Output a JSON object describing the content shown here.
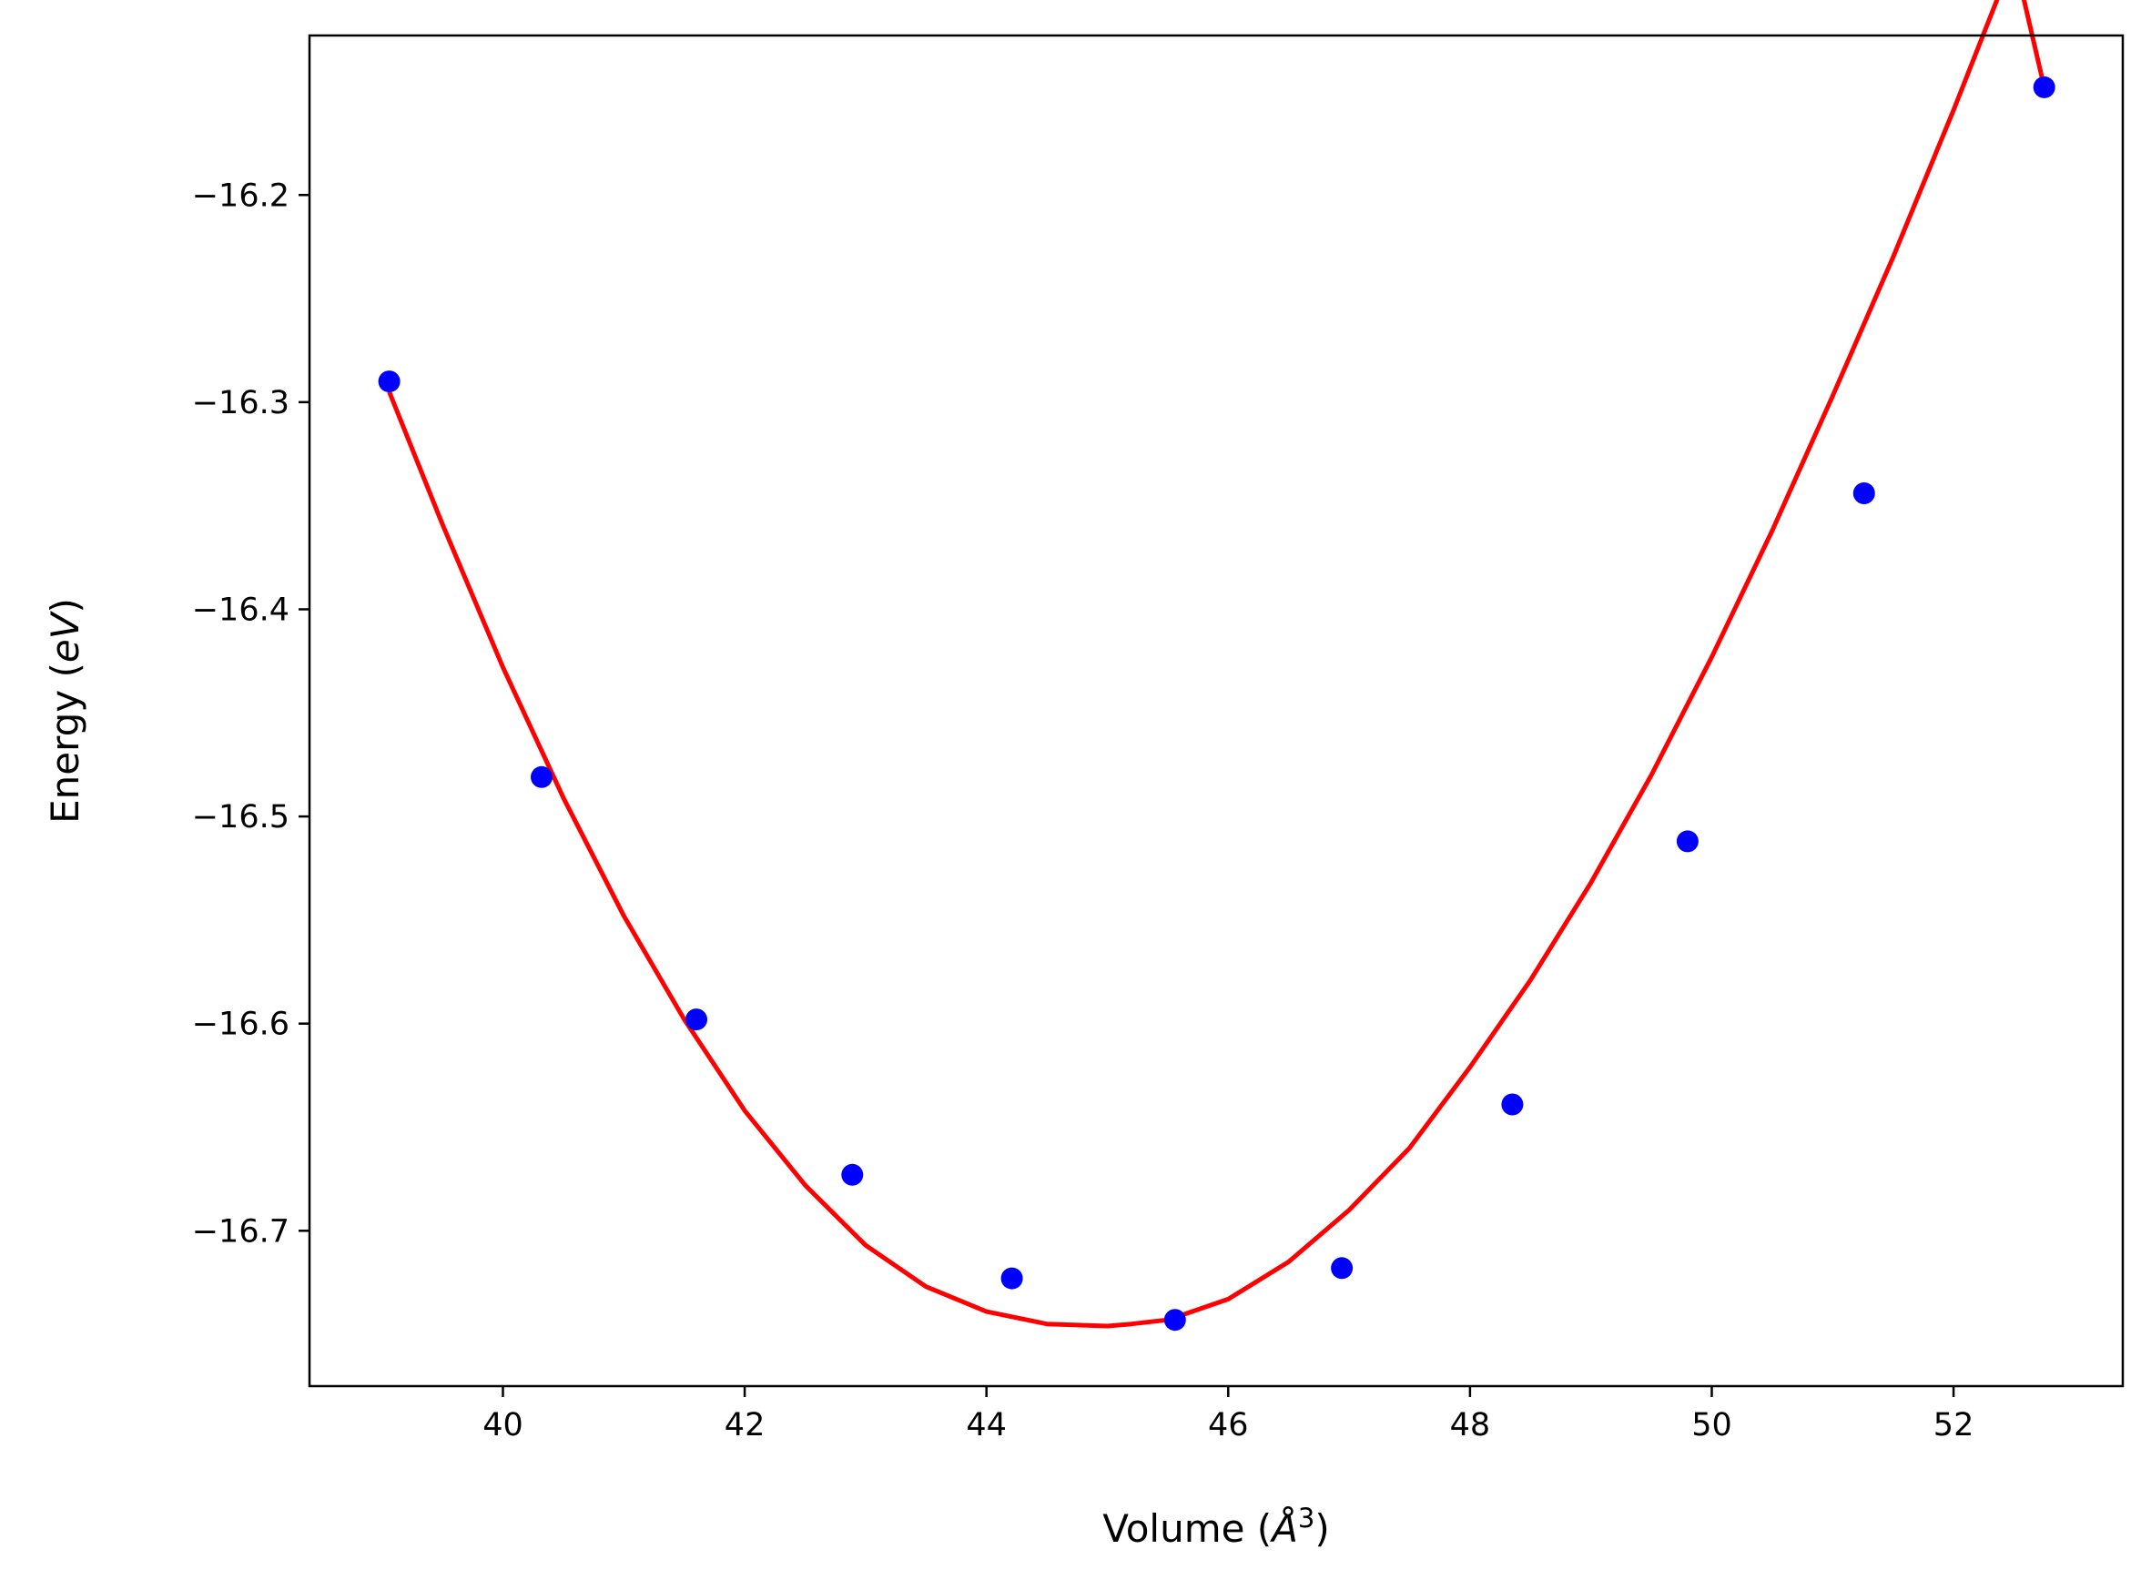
{
  "chart_data": {
    "type": "scatter",
    "xlabel": {
      "pre": "Volume (",
      "sym": "Å",
      "sup": "3",
      "post": ")"
    },
    "ylabel": {
      "pre": "Energy (",
      "ital": "eV",
      "post": ")"
    },
    "xlim": [
      38.4,
      53.4
    ],
    "ylim": [
      -16.775,
      -16.123
    ],
    "xticks": [
      40,
      42,
      44,
      46,
      48,
      50,
      52
    ],
    "xtick_labels": [
      "40",
      "42",
      "44",
      "46",
      "48",
      "50",
      "52"
    ],
    "yticks": [
      -16.2,
      -16.3,
      -16.4,
      -16.5,
      -16.6,
      -16.7
    ],
    "ytick_labels": [
      "−16.2",
      "−16.3",
      "−16.4",
      "−16.5",
      "−16.6",
      "−16.7"
    ],
    "points": {
      "x": [
        39.06,
        40.32,
        41.6,
        42.89,
        44.21,
        45.56,
        46.94,
        48.35,
        49.8,
        51.26,
        52.75
      ],
      "y": [
        -16.29,
        -16.481,
        -16.598,
        -16.673,
        -16.723,
        -16.743,
        -16.718,
        -16.639,
        -16.512,
        -16.344,
        -16.148
      ],
      "color": "#0000ff"
    },
    "fit": {
      "type": "line",
      "color": "#ff0000",
      "x": [
        39.06,
        39.5,
        40.0,
        40.5,
        41.0,
        41.5,
        42.0,
        42.5,
        43.0,
        43.5,
        44.0,
        44.5,
        45.0,
        45.2,
        45.5,
        46.0,
        46.5,
        47.0,
        47.5,
        48.0,
        48.5,
        49.0,
        49.5,
        50.0,
        50.5,
        51.0,
        51.5,
        52.0,
        52.5,
        52.75
      ],
      "y": [
        -16.295,
        -16.359,
        -16.428,
        -16.491,
        -16.548,
        -16.598,
        -16.642,
        -16.678,
        -16.707,
        -16.727,
        -16.739,
        -16.745,
        -16.746,
        -16.745,
        -16.743,
        -16.733,
        -16.715,
        -16.69,
        -16.66,
        -16.621,
        -16.579,
        -16.532,
        -16.48,
        -16.423,
        -16.362,
        -16.297,
        -16.23,
        -16.159,
        -16.085,
        -16.148
      ]
    },
    "grid": false,
    "legend": null
  }
}
